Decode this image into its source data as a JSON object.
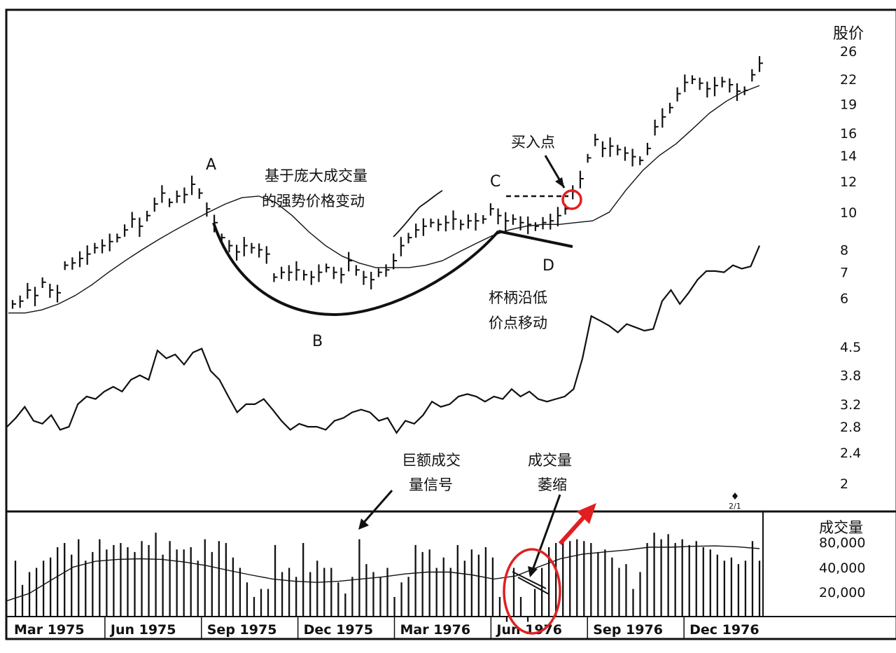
{
  "chart_data": {
    "type": "line",
    "price_axis": {
      "title": "股价",
      "ticks": [
        26,
        22,
        19,
        16,
        14,
        12,
        10,
        8,
        7,
        6,
        4.5,
        3.8,
        3.2,
        2.8,
        2.4,
        2.0
      ],
      "scale": "log"
    },
    "volume_axis": {
      "title": "成交量",
      "ticks": [
        "80,000",
        "40,000",
        "20,000"
      ]
    },
    "x_axis": {
      "tick_labels": [
        "Mar 1975",
        "Jun 1975",
        "Sep 1975",
        "Dec 1975",
        "Mar 1976",
        "Jun 1976",
        "Sep 1976",
        "Dec 1976"
      ]
    },
    "series": [
      {
        "kind": "weekly-price-bars",
        "close": [
          5.8,
          5.9,
          6.3,
          6.1,
          6.6,
          6.3,
          6.2,
          7.3,
          7.4,
          7.6,
          7.8,
          8.1,
          8.2,
          8.4,
          8.6,
          9.0,
          9.6,
          9.2,
          9.8,
          10.5,
          11.2,
          10.6,
          11.0,
          11.1,
          11.8,
          11.2,
          10.2,
          9.4,
          8.6,
          8.2,
          7.9,
          8.2,
          8.1,
          8.0,
          7.8,
          6.8,
          7.0,
          7.0,
          7.1,
          6.9,
          6.8,
          7.0,
          7.2,
          7.0,
          6.9,
          7.5,
          7.1,
          6.8,
          6.7,
          7.0,
          7.1,
          7.5,
          8.2,
          8.6,
          9.0,
          9.2,
          9.4,
          9.3,
          9.4,
          9.6,
          9.3,
          9.5,
          9.5,
          9.6,
          10.2,
          9.8,
          9.5,
          9.6,
          9.4,
          9.3,
          9.2,
          9.4,
          9.5,
          9.8,
          10.2,
          11.3,
          12.2,
          13.8,
          15.4,
          14.6,
          14.8,
          14.5,
          14.2,
          13.9,
          13.6,
          14.6,
          16.6,
          17.6,
          18.6,
          20.2,
          21.6,
          22.0,
          21.5,
          20.8,
          21.2,
          21.7,
          21.3,
          20.5,
          20.6,
          22.6,
          24.2
        ]
      },
      {
        "kind": "moving-average-line",
        "values": [
          5.5,
          5.5,
          5.6,
          5.8,
          6.1,
          6.5,
          7.0,
          7.5,
          8.0,
          8.5,
          9.0,
          9.5,
          10.0,
          10.5,
          10.9,
          11.0,
          10.6,
          9.8,
          8.9,
          8.2,
          7.7,
          7.4,
          7.2,
          7.2,
          7.2,
          7.3,
          7.5,
          7.9,
          8.3,
          8.7,
          9.0,
          9.2,
          9.3,
          9.3,
          9.4,
          9.5,
          10.0,
          11.4,
          12.8,
          14.0,
          15.0,
          16.4,
          18.0,
          19.3,
          20.4,
          21.2
        ]
      },
      {
        "kind": "relative-strength-line",
        "values": [
          2.8,
          2.95,
          3.15,
          2.9,
          2.85,
          3.0,
          2.75,
          2.8,
          3.2,
          3.35,
          3.3,
          3.45,
          3.55,
          3.45,
          3.7,
          3.8,
          3.7,
          4.4,
          4.2,
          4.3,
          4.05,
          4.35,
          4.45,
          3.9,
          3.7,
          3.35,
          3.05,
          3.2,
          3.2,
          3.3,
          3.1,
          2.9,
          2.75,
          2.85,
          2.8,
          2.8,
          2.75,
          2.9,
          2.95,
          3.05,
          3.1,
          3.05,
          2.9,
          2.95,
          2.7,
          2.9,
          2.85,
          3.0,
          3.25,
          3.15,
          3.2,
          3.35,
          3.4,
          3.35,
          3.25,
          3.35,
          3.3,
          3.5,
          3.35,
          3.45,
          3.3,
          3.25,
          3.3,
          3.35,
          3.5,
          4.2,
          5.4,
          5.25,
          5.1,
          4.9,
          5.15,
          5.05,
          4.95,
          5.0,
          5.9,
          6.3,
          5.8,
          6.2,
          6.7,
          7.05,
          7.05,
          7.0,
          7.3,
          7.15,
          7.25,
          8.2
        ]
      },
      {
        "kind": "weekly-volume-bars",
        "values": [
          55,
          28,
          40,
          45,
          55,
          60,
          80,
          90,
          65,
          100,
          55,
          70,
          100,
          75,
          85,
          90,
          80,
          70,
          95,
          85,
          120,
          65,
          95,
          75,
          75,
          80,
          55,
          100,
          70,
          95,
          90,
          60,
          45,
          30,
          20,
          25,
          25,
          85,
          40,
          45,
          35,
          90,
          40,
          55,
          45,
          45,
          30,
          22,
          35,
          100,
          50,
          40,
          35,
          45,
          20,
          30,
          35,
          85,
          70,
          75,
          45,
          60,
          45,
          85,
          55,
          75,
          65,
          80,
          60,
          20,
          10,
          45,
          20,
          10,
          25,
          45,
          80,
          90,
          100,
          95,
          100,
          95,
          90,
          70,
          75,
          60,
          45,
          50,
          25,
          40,
          90,
          120,
          100,
          115,
          90,
          100,
          85,
          95,
          80,
          75,
          65,
          55,
          60,
          50,
          55,
          95,
          55
        ]
      },
      {
        "kind": "volume-moving-average-line",
        "values": [
          18,
          22,
          32,
          46,
          54,
          57,
          58,
          57,
          53,
          48,
          42,
          37,
          33,
          31,
          30,
          31,
          33,
          35,
          38,
          40,
          40,
          37,
          33,
          36,
          46,
          58,
          66,
          70,
          74,
          80,
          80,
          82,
          83,
          81,
          77
        ]
      }
    ],
    "annotations": [
      {
        "text": "A"
      },
      {
        "text": "B"
      },
      {
        "text": "C"
      },
      {
        "text": "D"
      },
      {
        "text": "基于庞大成交量"
      },
      {
        "text": "的强势价格变动"
      },
      {
        "text": "买入点"
      },
      {
        "text": "杯柄沿低"
      },
      {
        "text": "价点移动"
      },
      {
        "text": "巨额成交"
      },
      {
        "text": "量信号"
      },
      {
        "text": "成交量"
      },
      {
        "text": "萎缩"
      },
      {
        "text": "2/1"
      }
    ]
  }
}
